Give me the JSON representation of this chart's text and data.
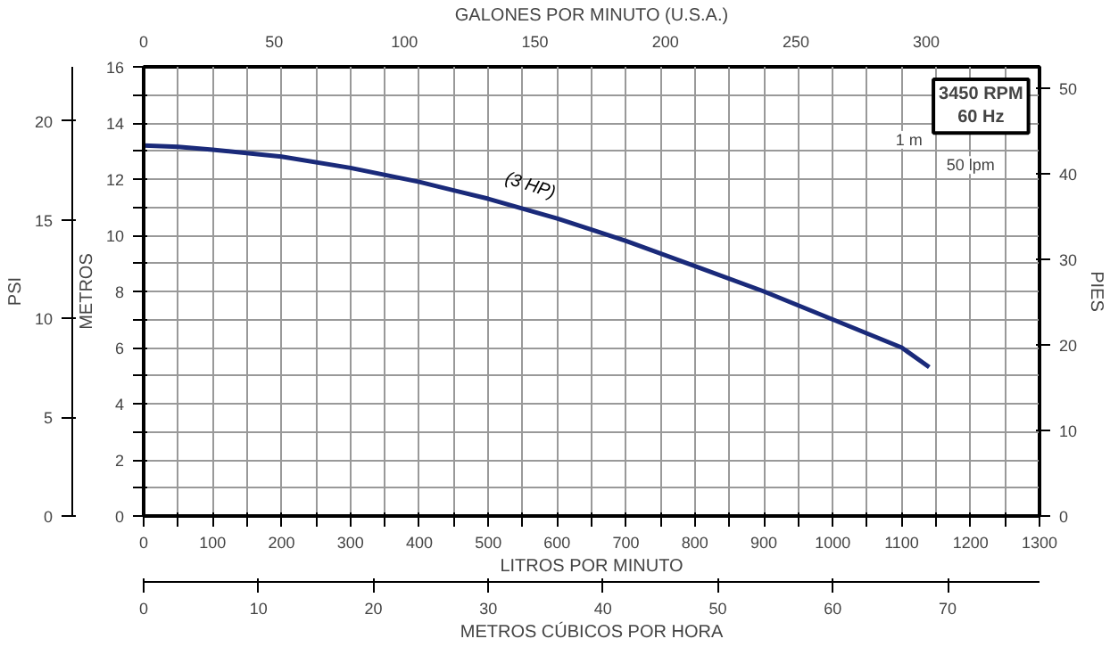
{
  "chart_data": {
    "type": "line",
    "xlabel": "LITROS POR MINUTO",
    "ylabel": "METROS",
    "x2label": "GALONES POR MINUTO (U.S.A.)",
    "y2label": "PSI",
    "y3label": "PIES",
    "x": [
      0,
      50,
      100,
      200,
      300,
      400,
      500,
      600,
      700,
      800,
      900,
      1000,
      1100,
      1140
    ],
    "series": [
      {
        "name": "(3 HP)",
        "color": "#1a2a7a",
        "values": [
          13.2,
          13.15,
          13.05,
          12.8,
          12.4,
          11.9,
          11.3,
          10.6,
          9.8,
          8.9,
          8.0,
          7.0,
          6.0,
          5.3
        ]
      }
    ],
    "xlim": [
      0,
      1300
    ],
    "xticks": [
      0,
      {
        "value": 50,
        "label": null
      },
      100,
      {
        "value": 150,
        "label": null
      },
      200,
      {
        "value": 250,
        "label": null
      },
      300,
      {
        "value": 350,
        "label": null
      },
      400,
      {
        "value": 450,
        "label": null
      },
      500,
      {
        "value": 550,
        "label": null
      },
      600,
      {
        "value": 650,
        "label": null
      },
      700,
      {
        "value": 750,
        "label": null
      },
      800,
      {
        "value": 850,
        "label": null
      },
      900,
      {
        "value": 950,
        "label": null
      },
      1000,
      {
        "value": 1050,
        "label": null
      },
      1100,
      {
        "value": 1150,
        "label": null
      },
      1200,
      {
        "value": 1250,
        "label": null
      },
      1300
    ],
    "ylim": [
      0,
      16
    ],
    "yticks": [
      0,
      {
        "value": 1,
        "label": null
      },
      2,
      {
        "value": 3,
        "label": null
      },
      4,
      {
        "value": 5,
        "label": null
      },
      6,
      {
        "value": 7,
        "label": null
      },
      8,
      {
        "value": 9,
        "label": null
      },
      10,
      {
        "value": 11,
        "label": null
      },
      12,
      {
        "value": 13,
        "label": null
      },
      14,
      {
        "value": 15,
        "label": null
      },
      16
    ],
    "x2lim": [
      0,
      343.4
    ],
    "x2ticks": [
      0,
      50,
      100,
      150,
      200,
      250,
      300
    ],
    "y2lim": [
      0,
      22.75
    ],
    "y2ticks": [
      0,
      5,
      10,
      15,
      20
    ],
    "y3lim": [
      0,
      52.5
    ],
    "y3ticks": [
      0,
      10,
      20,
      30,
      40,
      50
    ],
    "grid": true,
    "marker": "none",
    "line_style": "solid",
    "annotations": [
      "3450 RPM\n60 Hz",
      "1 m",
      "50 lpm",
      "METROS CÚBICOS POR HORA",
      "0",
      "10",
      "20",
      "30",
      "40",
      "50",
      "60",
      "70"
    ]
  }
}
